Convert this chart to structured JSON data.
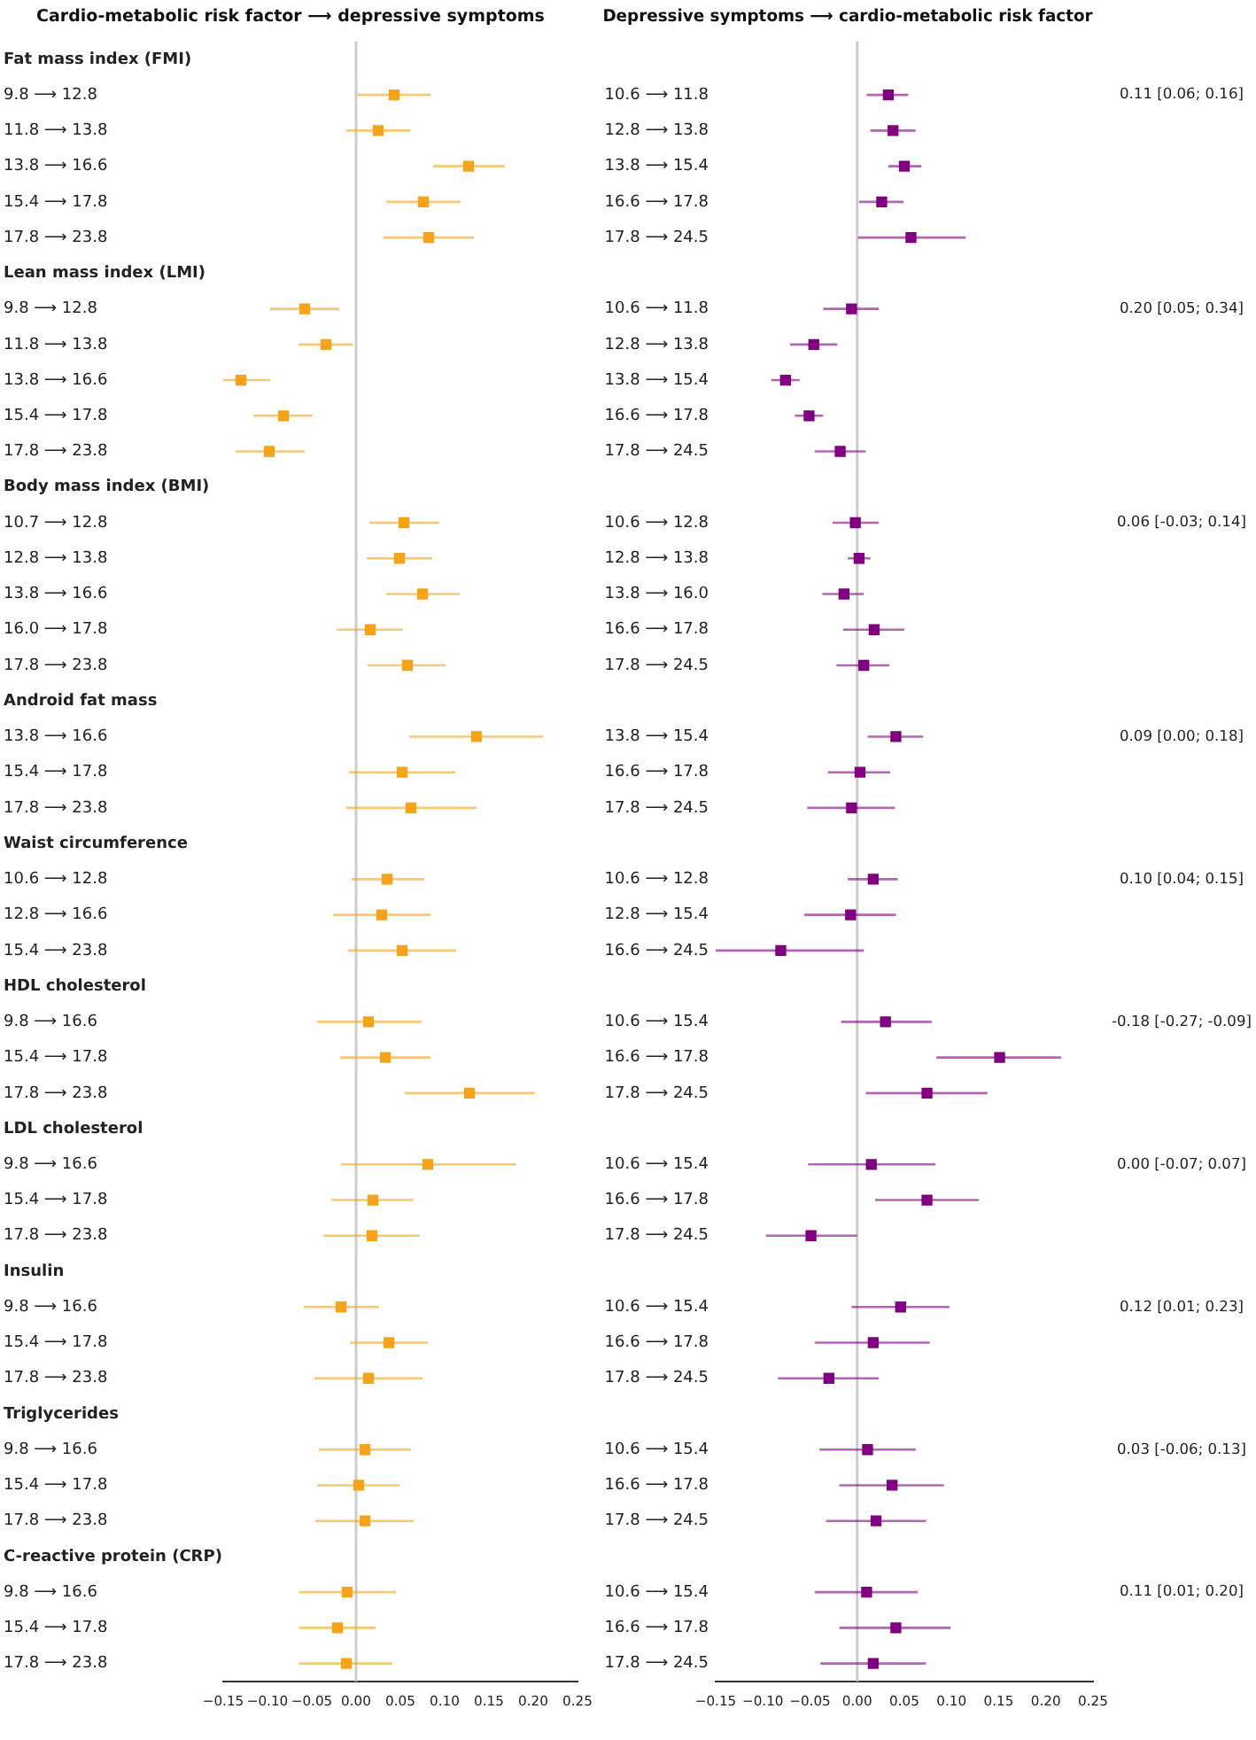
{
  "chart_data": [
    {
      "type": "scatter",
      "orientation": "horizontal",
      "title": "Cardio-metabolic risk factor ⟶ depressive symptoms",
      "marker": "square",
      "legend": false,
      "grid": false,
      "xlim": [
        -0.15,
        0.25
      ],
      "xticks": [
        {
          "value": -0.15,
          "label": "−0.15"
        },
        {
          "value": -0.1,
          "label": "−0.10"
        },
        {
          "value": -0.05,
          "label": "−0.05"
        },
        {
          "value": 0,
          "label": "0.00"
        },
        {
          "value": 0.05,
          "label": "0.05"
        },
        {
          "value": 0.1,
          "label": "0.10"
        },
        {
          "value": 0.15,
          "label": "0.15"
        },
        {
          "value": 0.2,
          "label": "0.20"
        },
        {
          "value": 0.25,
          "label": "0.25"
        }
      ],
      "ref_lines": [
        {
          "axis": "x",
          "value": 0,
          "color": "#cccccc"
        }
      ],
      "categories": [
        "Fat mass index (FMI)",
        "9.8 ⟶ 12.8",
        "11.8 ⟶ 13.8",
        "13.8 ⟶ 16.6",
        "15.4 ⟶ 17.8",
        "17.8 ⟶ 23.8",
        "Lean mass index (LMI)",
        "9.8 ⟶ 12.8",
        "11.8 ⟶ 13.8",
        "13.8 ⟶ 16.6",
        "15.4 ⟶ 17.8",
        "17.8 ⟶ 23.8",
        "Body mass index (BMI)",
        "10.7 ⟶ 12.8",
        "12.8 ⟶ 13.8",
        "13.8 ⟶ 16.6",
        "16.0 ⟶ 17.8",
        "17.8 ⟶ 23.8",
        "Android fat mass",
        "13.8 ⟶ 16.6",
        "15.4 ⟶ 17.8",
        "17.8 ⟶ 23.8",
        "Waist circumference",
        "10.6 ⟶ 12.8",
        "12.8 ⟶ 16.6",
        "15.4 ⟶ 23.8",
        "HDL cholesterol",
        "9.8 ⟶ 16.6",
        "15.4 ⟶ 17.8",
        "17.8 ⟶ 23.8",
        "LDL cholesterol",
        "9.8 ⟶ 16.6",
        "15.4 ⟶ 17.8",
        "17.8 ⟶ 23.8",
        "Insulin",
        "9.8 ⟶ 16.6",
        "15.4 ⟶ 17.8",
        "17.8 ⟶ 23.8",
        "Triglycerides",
        "9.8 ⟶ 16.6",
        "15.4 ⟶ 17.8",
        "17.8 ⟶ 23.8",
        "C-reactive protein (CRP)",
        "9.8 ⟶ 16.6",
        "15.4 ⟶ 17.8",
        "17.8 ⟶ 23.8"
      ],
      "series": [
        {
          "color": "#f5a31a",
          "values": [
            null,
            0.043,
            0.025,
            0.127,
            0.076,
            0.082,
            null,
            -0.058,
            -0.034,
            -0.13,
            -0.082,
            -0.098,
            null,
            0.054,
            0.049,
            0.075,
            0.016,
            0.058,
            null,
            0.136,
            0.052,
            0.062,
            null,
            0.035,
            0.029,
            0.052,
            null,
            0.014,
            0.033,
            0.128,
            null,
            0.081,
            0.019,
            0.018,
            null,
            -0.017,
            0.037,
            0.014,
            null,
            0.01,
            0.003,
            0.01,
            null,
            -0.01,
            -0.021,
            -0.011
          ],
          "errors": [
            null,
            [
              0.002,
              0.084
            ],
            [
              -0.011,
              0.061
            ],
            [
              0.087,
              0.168
            ],
            [
              0.034,
              0.118
            ],
            [
              0.031,
              0.133
            ],
            null,
            [
              -0.097,
              -0.019
            ],
            [
              -0.065,
              -0.004
            ],
            [
              -0.15,
              -0.097
            ],
            [
              -0.116,
              -0.049
            ],
            [
              -0.136,
              -0.058
            ],
            null,
            [
              0.015,
              0.094
            ],
            [
              0.012,
              0.086
            ],
            [
              0.034,
              0.117
            ],
            [
              -0.022,
              0.053
            ],
            [
              0.013,
              0.101
            ],
            null,
            [
              0.06,
              0.211
            ],
            [
              -0.008,
              0.112
            ],
            [
              -0.011,
              0.136
            ],
            null,
            [
              -0.005,
              0.077
            ],
            [
              -0.026,
              0.084
            ],
            [
              -0.009,
              0.113
            ],
            null,
            [
              -0.044,
              0.074
            ],
            [
              -0.018,
              0.084
            ],
            [
              0.055,
              0.202
            ],
            null,
            [
              -0.017,
              0.18
            ],
            [
              -0.028,
              0.065
            ],
            [
              -0.037,
              0.072
            ],
            null,
            [
              -0.059,
              0.026
            ],
            [
              -0.007,
              0.081
            ],
            [
              -0.047,
              0.075
            ],
            null,
            [
              -0.042,
              0.062
            ],
            [
              -0.044,
              0.049
            ],
            [
              -0.046,
              0.065
            ],
            null,
            [
              -0.064,
              0.045
            ],
            [
              -0.064,
              0.022
            ],
            [
              -0.064,
              0.041
            ]
          ]
        }
      ]
    },
    {
      "type": "scatter",
      "orientation": "horizontal",
      "title": "Depressive symptoms ⟶ cardio-metabolic risk factor",
      "marker": "square",
      "legend": false,
      "grid": false,
      "xlim": [
        -0.15,
        0.25
      ],
      "xticks": [
        {
          "value": -0.15,
          "label": "−0.15"
        },
        {
          "value": -0.1,
          "label": "−0.10"
        },
        {
          "value": -0.05,
          "label": "−0.05"
        },
        {
          "value": 0,
          "label": "0.00"
        },
        {
          "value": 0.05,
          "label": "0.05"
        },
        {
          "value": 0.1,
          "label": "0.10"
        },
        {
          "value": 0.15,
          "label": "0.15"
        },
        {
          "value": 0.2,
          "label": "0.20"
        },
        {
          "value": 0.25,
          "label": "0.25"
        }
      ],
      "ref_lines": [
        {
          "axis": "x",
          "value": 0,
          "color": "#cccccc"
        }
      ],
      "annotations": [
        "0.11 [0.06; 0.16]",
        "0.20 [0.05; 0.34]",
        "0.06 [-0.03; 0.14]",
        "0.09 [0.00; 0.18]",
        "0.10 [0.04; 0.15]",
        "-0.18 [-0.27; -0.09]",
        "0.00 [-0.07; 0.07]",
        "0.12 [0.01; 0.23]",
        "0.03 [-0.06; 0.13]",
        "0.11 [0.01; 0.20]"
      ],
      "categories": [
        null,
        "10.6 ⟶ 11.8",
        "12.8 ⟶ 13.8",
        "13.8 ⟶ 15.4",
        "16.6 ⟶ 17.8",
        "17.8 ⟶ 24.5",
        null,
        "10.6 ⟶ 11.8",
        "12.8 ⟶ 13.8",
        "13.8 ⟶ 15.4",
        "16.6 ⟶ 17.8",
        "17.8 ⟶ 24.5",
        null,
        "10.6 ⟶ 12.8",
        "12.8 ⟶ 13.8",
        "13.8 ⟶ 16.0",
        "16.6 ⟶ 17.8",
        "17.8 ⟶ 24.5",
        null,
        "13.8 ⟶ 15.4",
        "16.6 ⟶ 17.8",
        "17.8 ⟶ 24.5",
        null,
        "10.6 ⟶ 12.8",
        "12.8 ⟶ 15.4",
        "16.6 ⟶ 24.5",
        null,
        "10.6 ⟶ 15.4",
        "16.6 ⟶ 17.8",
        "17.8 ⟶ 24.5",
        null,
        "10.6 ⟶ 15.4",
        "16.6 ⟶ 17.8",
        "17.8 ⟶ 24.5",
        null,
        "10.6 ⟶ 15.4",
        "16.6 ⟶ 17.8",
        "17.8 ⟶ 24.5",
        null,
        "10.6 ⟶ 15.4",
        "16.6 ⟶ 17.8",
        "17.8 ⟶ 24.5",
        null,
        "10.6 ⟶ 15.4",
        "16.6 ⟶ 17.8",
        "17.8 ⟶ 24.5"
      ],
      "series": [
        {
          "color": "#800080",
          "values": [
            null,
            0.033,
            0.038,
            0.05,
            0.026,
            0.057,
            null,
            -0.006,
            -0.046,
            -0.076,
            -0.051,
            -0.018,
            null,
            -0.002,
            0.002,
            -0.014,
            0.018,
            0.007,
            null,
            0.041,
            0.003,
            -0.006,
            null,
            0.017,
            -0.007,
            -0.081,
            null,
            0.03,
            0.151,
            0.074,
            null,
            0.015,
            0.074,
            -0.049,
            null,
            0.046,
            0.017,
            -0.03,
            null,
            0.011,
            0.037,
            0.02,
            null,
            0.01,
            0.041,
            0.017
          ],
          "errors": [
            null,
            [
              0.01,
              0.054
            ],
            [
              0.014,
              0.062
            ],
            [
              0.033,
              0.068
            ],
            [
              0.002,
              0.049
            ],
            [
              0.001,
              0.115
            ],
            null,
            [
              -0.036,
              0.023
            ],
            [
              -0.071,
              -0.021
            ],
            [
              -0.091,
              -0.061
            ],
            [
              -0.066,
              -0.036
            ],
            [
              -0.045,
              0.009
            ],
            null,
            [
              -0.026,
              0.023
            ],
            [
              -0.01,
              0.014
            ],
            [
              -0.037,
              0.007
            ],
            [
              -0.015,
              0.05
            ],
            [
              -0.022,
              0.034
            ],
            null,
            [
              0.011,
              0.07
            ],
            [
              -0.031,
              0.035
            ],
            [
              -0.053,
              0.04
            ],
            null,
            [
              -0.01,
              0.043
            ],
            [
              -0.056,
              0.041
            ],
            [
              -0.15,
              0.007
            ],
            null,
            [
              -0.017,
              0.079
            ],
            [
              0.084,
              0.216
            ],
            [
              0.009,
              0.138
            ],
            null,
            [
              -0.052,
              0.083
            ],
            [
              0.019,
              0.129
            ],
            [
              -0.097,
              0
            ],
            null,
            [
              -0.006,
              0.098
            ],
            [
              -0.045,
              0.077
            ],
            [
              -0.084,
              0.023
            ],
            null,
            [
              -0.04,
              0.062
            ],
            [
              -0.019,
              0.092
            ],
            [
              -0.033,
              0.073
            ],
            null,
            [
              -0.045,
              0.064
            ],
            [
              -0.019,
              0.099
            ],
            [
              -0.039,
              0.073
            ]
          ]
        }
      ]
    }
  ]
}
